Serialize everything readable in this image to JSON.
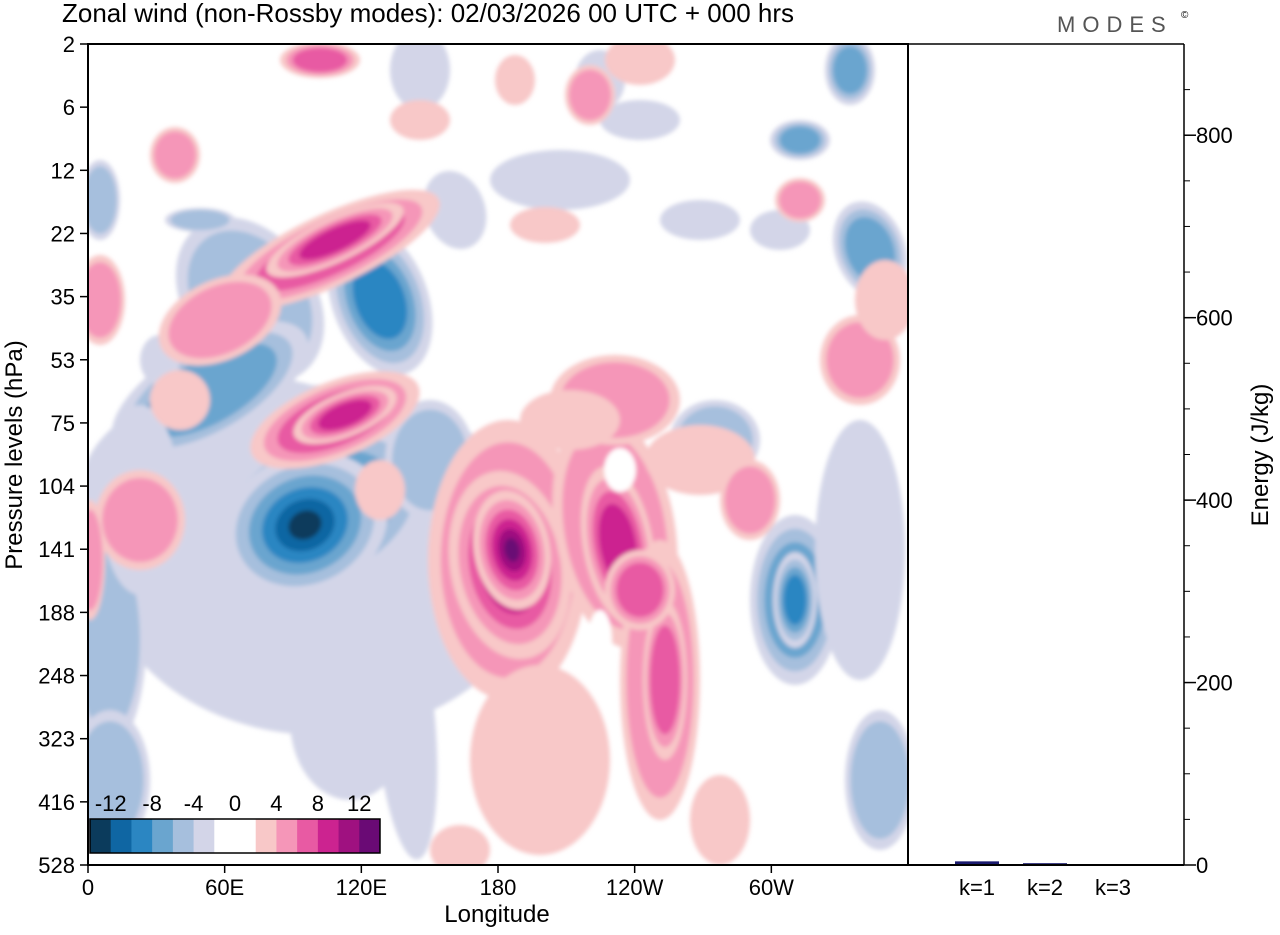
{
  "header": {
    "title": "Zonal wind (non-Rossby modes):  02/03/2026  00 UTC  + 000 hrs",
    "logo_text": "MODES",
    "logo_mark": "©"
  },
  "chart_data": [
    {
      "type": "heatmap",
      "title": "Zonal wind (non-Rossby modes):  02/03/2026  00 UTC  + 000 hrs",
      "xlabel": "Longitude",
      "ylabel": "Pressure levels (hPa)",
      "x_tick_labels": [
        "0",
        "60E",
        "120E",
        "180",
        "120W",
        "60W"
      ],
      "x_range_deg": [
        0,
        360
      ],
      "y_tick_labels": [
        "2",
        "6",
        "12",
        "22",
        "35",
        "53",
        "75",
        "104",
        "141",
        "188",
        "248",
        "323",
        "416",
        "528"
      ],
      "colorbar": {
        "tick_labels": [
          "-12",
          "-8",
          "-4",
          "0",
          "4",
          "8",
          "12"
        ],
        "colors": [
          "#0b3b5c",
          "#0f66a3",
          "#2b86c2",
          "#6aa5cf",
          "#a6bfdd",
          "#d3d5e8",
          "#ffffff",
          "#ffffff",
          "#f8c8c8",
          "#f596b8",
          "#e85aa3",
          "#cc2390",
          "#9f1180",
          "#6a0a75"
        ]
      },
      "features": [
        {
          "name": "negative core upper troposphere",
          "lon_deg": 95,
          "level_hPa": 141,
          "value": -16
        },
        {
          "name": "positive core near dateline",
          "lon_deg": 185,
          "level_hPa": 141,
          "value": 14
        },
        {
          "name": "positive core",
          "lon_deg": 232,
          "level_hPa": 141,
          "value": 12
        },
        {
          "name": "positive tilted band",
          "lon_deg": 120,
          "level_hPa": 22,
          "value": 10
        },
        {
          "name": "negative tilted band",
          "lon_deg": 130,
          "level_hPa": 35,
          "value": -8
        },
        {
          "name": "positive tilted band lower",
          "lon_deg": 120,
          "level_hPa": 75,
          "value": 10
        },
        {
          "name": "negative secondary",
          "lon_deg": 315,
          "level_hPa": 188,
          "value": -8
        }
      ]
    },
    {
      "type": "bar",
      "categories": [
        "k=1",
        "k=2",
        "k=3"
      ],
      "values": [
        4,
        2,
        1
      ],
      "ylabel": "Energy (J/kg)",
      "y_tick_labels": [
        "0",
        "200",
        "400",
        "600",
        "800"
      ],
      "ylim": [
        0,
        900
      ],
      "bar_color": "#1a1a6e"
    }
  ]
}
